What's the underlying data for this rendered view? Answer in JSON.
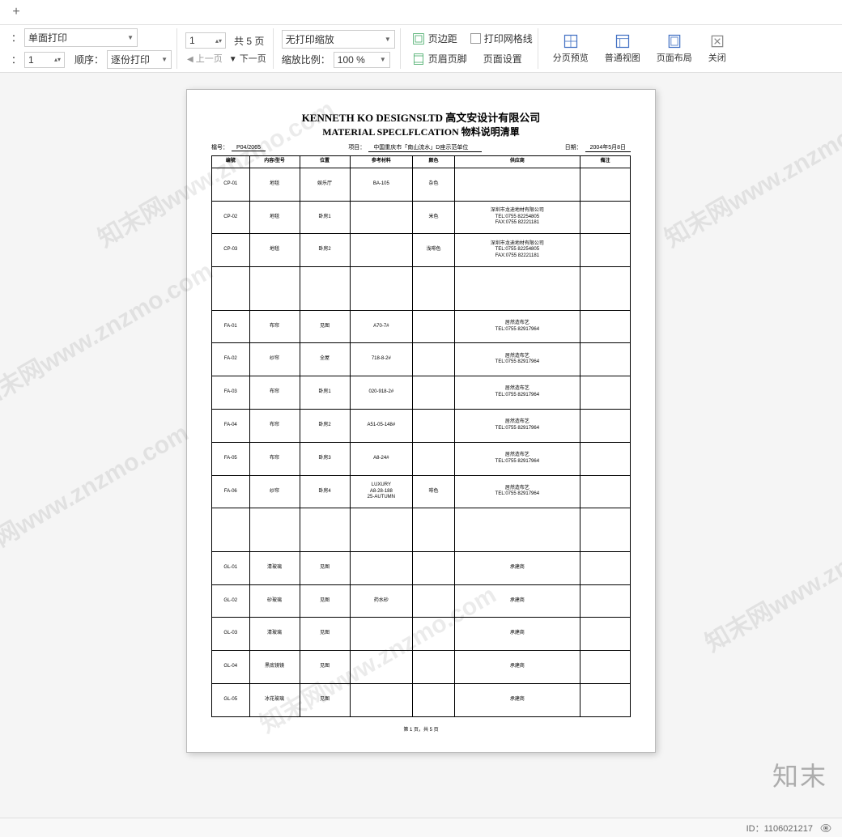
{
  "tab": {
    "plus": "+"
  },
  "toolbar": {
    "duplex": {
      "value": "单面打印",
      "label": "："
    },
    "order": {
      "label": "顺序：",
      "value": "逐份打印"
    },
    "copies_label": "：",
    "copies_value": "1",
    "page_current": "1",
    "page_total_label": "共 5 页",
    "prev": "上一页",
    "next": "下一页",
    "scale": {
      "value": "无打印缩放"
    },
    "zoom": {
      "label": "缩放比例：",
      "value": "100 %"
    },
    "margins": "页边距",
    "header_footer": "页眉页脚",
    "show_grid": "打印网格线",
    "page_setup": "页面设置",
    "page_break": "分页预览",
    "normal_view": "普通视图",
    "page_layout": "页面布局",
    "close": "关闭"
  },
  "document": {
    "title1": "KENNETH KO DESIGNSLTD 高文安设计有限公司",
    "title2": "MATERIAL SPECLFLCATION 物料说明清單",
    "meta": {
      "ref_label": "檔号：",
      "ref_value": "P04/2065",
      "project_label": "项目：",
      "project_value": "中国重庆市「南山流水」D座示范单位",
      "date_label": "日期：",
      "date_value": "2004年5月8日"
    },
    "columns": [
      "编號",
      "内容/型号",
      "位置",
      "参考材料",
      "颜色",
      "供应商",
      "備注"
    ],
    "col_widths": [
      "9%",
      "12%",
      "12%",
      "15%",
      "10%",
      "30%",
      "12%"
    ],
    "rows": [
      {
        "c": [
          "CP-01",
          "地毯",
          "娱乐厅",
          "BA-105",
          "杂色",
          "",
          ""
        ],
        "h": ""
      },
      {
        "c": [
          "CP-02",
          "地毯",
          "卧房1",
          "",
          "米色",
          "深圳市龙迪地材有限公司\nTEL:0755 82254805\nFAX:0755 82221181"
        ],
        "h": ""
      },
      {
        "c": [
          "CP-03",
          "地毯",
          "卧房2",
          "",
          "浅啡色",
          "深圳市龙迪地材有限公司\nTEL:0755 82254805\nFAX:0755 82221181"
        ],
        "h": ""
      },
      {
        "c": [
          "",
          "",
          "",
          "",
          "",
          "",
          ""
        ],
        "h": "tall"
      },
      {
        "c": [
          "FA-01",
          "布帘",
          "见图",
          "A70-7#",
          "",
          "居然造布艺\nTEL:0755 82917964"
        ],
        "h": ""
      },
      {
        "c": [
          "FA-02",
          "纱帘",
          "全屋",
          "718-8-2#",
          "",
          "居然造布艺\nTEL:0755 82917964"
        ],
        "h": ""
      },
      {
        "c": [
          "FA-03",
          "布帘",
          "卧房1",
          "020-918-2#",
          "",
          "居然造布艺\nTEL:0755 82917964"
        ],
        "h": ""
      },
      {
        "c": [
          "FA-04",
          "布帘",
          "卧房2",
          "A51-05-148#",
          "",
          "居然造布艺\nTEL:0755 82917964"
        ],
        "h": ""
      },
      {
        "c": [
          "FA-05",
          "布帘",
          "卧房3",
          "A8-24#",
          "",
          "居然造布艺\nTEL:0755 82917964"
        ],
        "h": ""
      },
      {
        "c": [
          "FA-06",
          "纱帘",
          "卧房4",
          "LUXURY\nA8-28-188\n25-AUTUMN",
          "啡色",
          "居然造布艺\nTEL:0755 82917964"
        ],
        "h": ""
      },
      {
        "c": [
          "",
          "",
          "",
          "",
          "",
          "",
          ""
        ],
        "h": "tall"
      },
      {
        "c": [
          "GL-01",
          "清玻璃",
          "见图",
          "",
          "",
          "承建商",
          ""
        ],
        "h": ""
      },
      {
        "c": [
          "GL-02",
          "砂玻璃",
          "见图",
          "药水砂",
          "",
          "承建商",
          ""
        ],
        "h": ""
      },
      {
        "c": [
          "GL-03",
          "清玻璃",
          "见图",
          "",
          "",
          "承建商",
          ""
        ],
        "h": ""
      },
      {
        "c": [
          "GL-04",
          "黑底镜镜",
          "见图",
          "",
          "",
          "承建商",
          ""
        ],
        "h": ""
      },
      {
        "c": [
          "GL-05",
          "冰花玻璃",
          "见图",
          "",
          "",
          "承建商",
          ""
        ],
        "h": ""
      }
    ],
    "footer": "第 1 页，共 5 页"
  },
  "watermark_text": "知末网www.znzmo.com",
  "brand": "知末",
  "bottom": {
    "id": "ID：1106021217"
  }
}
